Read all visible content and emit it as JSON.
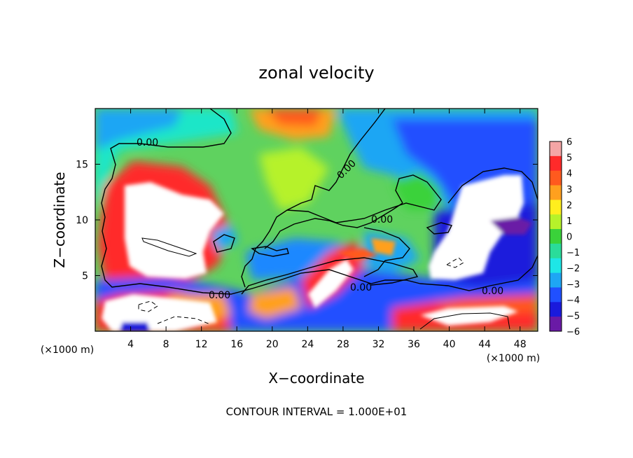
{
  "chart_data": {
    "type": "heatmap",
    "title": "zonal velocity",
    "xlabel": "X−coordinate",
    "ylabel": "Z−coordinate",
    "x_unit_left": "(×1000 m)",
    "x_unit_right": "(×1000 m)",
    "footer": "CONTOUR INTERVAL = 1.000E+01",
    "xlim": [
      0,
      50
    ],
    "ylim": [
      0,
      20
    ],
    "x_ticks": [
      4,
      8,
      12,
      16,
      20,
      24,
      28,
      32,
      36,
      40,
      44,
      48
    ],
    "x_tick_labels": [
      "4",
      "8",
      "12",
      "16",
      "20",
      "24",
      "28",
      "32",
      "36",
      "40",
      "44",
      "48"
    ],
    "y_ticks": [
      5,
      10,
      15
    ],
    "y_tick_labels": [
      "5",
      "10",
      "15"
    ],
    "colorbar": {
      "range": [
        -6,
        6
      ],
      "ticks": [
        6,
        5,
        4,
        3,
        2,
        1,
        0,
        -1,
        -2,
        -3,
        -4,
        -5,
        -6
      ],
      "tick_labels": [
        "6",
        "5",
        "4",
        "3",
        "2",
        "1",
        "0",
        "−1",
        "−2",
        "−3",
        "−4",
        "−5",
        "−6"
      ],
      "colors": [
        "#f4a5a5",
        "#ff2a2a",
        "#ff5a1e",
        "#ffa01e",
        "#ffee1e",
        "#b6f22a",
        "#3ad23a",
        "#2adc9a",
        "#1ee6e6",
        "#1ea6f4",
        "#2050ff",
        "#1a1adc",
        "#6a1aa6"
      ]
    },
    "contour_labels": [
      "0.00",
      "0.00",
      "0.00",
      "0.00",
      "0.00",
      "0.00"
    ],
    "background": "#5fd25f"
  }
}
